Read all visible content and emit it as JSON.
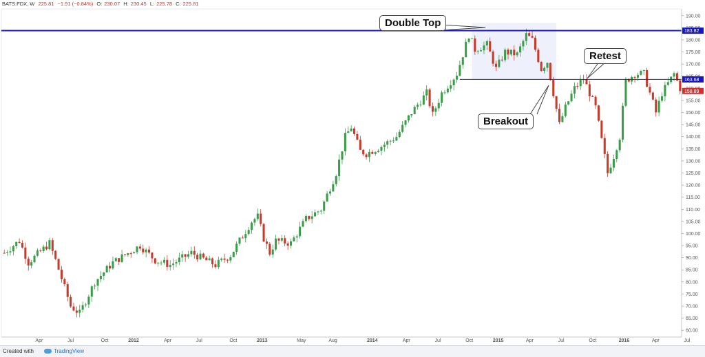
{
  "header": {
    "symbol": "BATS:FDX, W",
    "last": "225.81",
    "change": "−1.91 (−0.84%)",
    "o_label": "O:",
    "o_value": "230.07",
    "h_label": "H:",
    "h_value": "230.45",
    "l_label": "L:",
    "l_value": "225.78",
    "c_label": "C:",
    "c_value": "225.81"
  },
  "footer": {
    "created_with": "Created with",
    "brand": "TradingView"
  },
  "annotations": {
    "double_top": "Double Top",
    "breakout": "Breakout",
    "retest": "Retest"
  },
  "colors": {
    "up": "#3a9d4a",
    "down": "#c83a2a",
    "resistance_line": "#1616c8",
    "highlight_zone": "#eef0fb",
    "axis": "#555555"
  },
  "chart_data": {
    "type": "candlestick",
    "ylim": [
      57.5,
      192.5
    ],
    "y_ticks": [
      60,
      65,
      70,
      75,
      80,
      85,
      90,
      95,
      100,
      105,
      110,
      115,
      120,
      125,
      130,
      135,
      140,
      145,
      150,
      155,
      160,
      165,
      170,
      175,
      180,
      185,
      190
    ],
    "x_tick_labels": [
      "Apr",
      "Jul",
      "Oct",
      "2012",
      "Apr",
      "Jul",
      "Oct",
      "2013",
      "May",
      "Aug",
      "2014",
      "Apr",
      "Jul",
      "Oct",
      "2015",
      "Apr",
      "Jul",
      "Oct",
      "2016",
      "Apr",
      "Jul"
    ],
    "price_labels": [
      {
        "text": "183.82",
        "value": 183.82,
        "color": "#1616c8"
      },
      {
        "text": "163.68",
        "value": 163.68,
        "color": "#1616c8"
      },
      {
        "text": "158.89",
        "value": 158.89,
        "color": "#d32f2f"
      }
    ],
    "resistance_level": 183.82,
    "neckline_level": 163.68,
    "highlight_zone": {
      "x_start": 155,
      "x_end": 183,
      "y_low": 163.68,
      "y_high": 187
    },
    "anchors": [
      [
        0,
        92
      ],
      [
        5,
        97
      ],
      [
        8,
        88
      ],
      [
        15,
        96
      ],
      [
        17,
        89
      ],
      [
        22,
        70
      ],
      [
        25,
        67
      ],
      [
        30,
        80
      ],
      [
        36,
        88
      ],
      [
        45,
        95
      ],
      [
        50,
        89
      ],
      [
        55,
        87
      ],
      [
        62,
        92
      ],
      [
        70,
        87
      ],
      [
        75,
        91
      ],
      [
        82,
        105
      ],
      [
        84,
        107
      ],
      [
        86,
        98
      ],
      [
        88,
        92
      ],
      [
        90,
        97
      ],
      [
        95,
        96
      ],
      [
        100,
        106
      ],
      [
        105,
        110
      ],
      [
        110,
        125
      ],
      [
        113,
        140
      ],
      [
        115,
        144
      ],
      [
        118,
        134
      ],
      [
        120,
        133
      ],
      [
        125,
        136
      ],
      [
        130,
        140
      ],
      [
        135,
        150
      ],
      [
        140,
        158
      ],
      [
        142,
        149
      ],
      [
        145,
        158
      ],
      [
        150,
        166
      ],
      [
        152,
        174
      ],
      [
        154,
        182
      ],
      [
        156,
        176
      ],
      [
        160,
        178
      ],
      [
        163,
        168
      ],
      [
        166,
        175
      ],
      [
        170,
        174
      ],
      [
        173,
        182
      ],
      [
        175,
        180
      ],
      [
        178,
        168
      ],
      [
        180,
        171
      ],
      [
        182,
        158
      ],
      [
        184,
        145
      ],
      [
        186,
        152
      ],
      [
        189,
        160
      ],
      [
        192,
        164
      ],
      [
        196,
        152
      ],
      [
        200,
        125
      ],
      [
        202,
        132
      ],
      [
        204,
        140
      ],
      [
        206,
        163
      ],
      [
        209,
        166
      ],
      [
        212,
        166
      ],
      [
        216,
        150
      ],
      [
        218,
        158
      ],
      [
        220,
        162
      ],
      [
        222,
        166
      ],
      [
        224,
        160
      ]
    ],
    "candle_count": 225
  }
}
